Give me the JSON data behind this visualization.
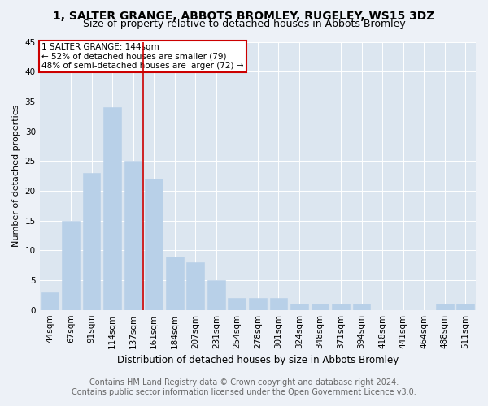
{
  "title": "1, SALTER GRANGE, ABBOTS BROMLEY, RUGELEY, WS15 3DZ",
  "subtitle": "Size of property relative to detached houses in Abbots Bromley",
  "xlabel": "Distribution of detached houses by size in Abbots Bromley",
  "ylabel": "Number of detached properties",
  "categories": [
    "44sqm",
    "67sqm",
    "91sqm",
    "114sqm",
    "137sqm",
    "161sqm",
    "184sqm",
    "207sqm",
    "231sqm",
    "254sqm",
    "278sqm",
    "301sqm",
    "324sqm",
    "348sqm",
    "371sqm",
    "394sqm",
    "418sqm",
    "441sqm",
    "464sqm",
    "488sqm",
    "511sqm"
  ],
  "values": [
    3,
    15,
    23,
    34,
    25,
    22,
    9,
    8,
    5,
    2,
    2,
    2,
    1,
    1,
    1,
    1,
    0,
    0,
    0,
    1,
    1
  ],
  "bar_color": "#b8d0e8",
  "bar_edge_color": "#b8d0e8",
  "vline_x_index": 4,
  "vline_color": "#cc0000",
  "annotation_text": "1 SALTER GRANGE: 144sqm\n← 52% of detached houses are smaller (79)\n48% of semi-detached houses are larger (72) →",
  "annotation_box_color": "#cc0000",
  "ylim": [
    0,
    45
  ],
  "yticks": [
    0,
    5,
    10,
    15,
    20,
    25,
    30,
    35,
    40,
    45
  ],
  "background_color": "#edf1f7",
  "plot_bg_color": "#dce6f0",
  "grid_color": "#ffffff",
  "footer_text": "Contains HM Land Registry data © Crown copyright and database right 2024.\nContains public sector information licensed under the Open Government Licence v3.0.",
  "title_fontsize": 10,
  "subtitle_fontsize": 9,
  "xlabel_fontsize": 8.5,
  "ylabel_fontsize": 8,
  "tick_fontsize": 7.5,
  "annotation_fontsize": 7.5,
  "footer_fontsize": 7
}
